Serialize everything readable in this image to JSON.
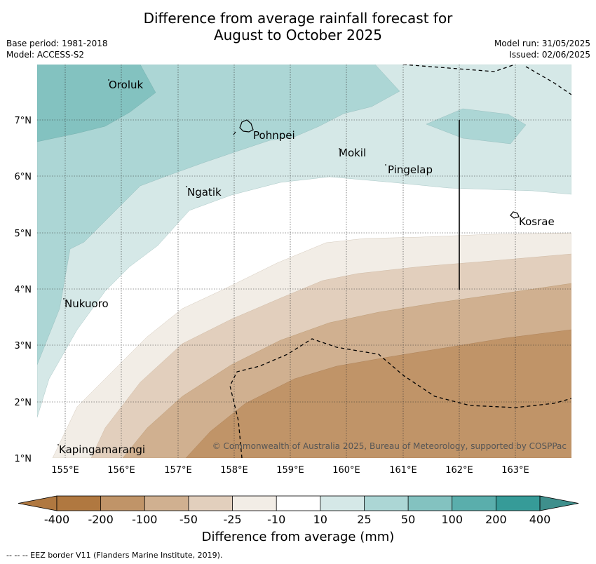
{
  "title_line1": "Difference from average rainfall forecast for",
  "title_line2": "August to October 2025",
  "base_period": "Base period: 1981-2018",
  "model": "Model: ACCESS-S2",
  "model_run": "Model run: 31/05/2025",
  "issued": "Issued: 02/06/2025",
  "copyright": "© Commonwealth of Australia 2025, Bureau of Meteorology, supported by COSPPac",
  "colorbar_title": "Difference from average (mm)",
  "footer_note": "--  --  -- EEZ border V11 (Flanders Marine Institute, 2019).",
  "lat_labels": [
    "7°N",
    "6°N",
    "5°N",
    "4°N",
    "3°N",
    "2°N",
    "1°N"
  ],
  "lon_labels": [
    "155°E",
    "156°E",
    "157°E",
    "158°E",
    "159°E",
    "160°E",
    "161°E",
    "162°E",
    "163°E"
  ],
  "places": [
    {
      "name": "Oroluk"
    },
    {
      "name": "Pohnpei"
    },
    {
      "name": "Mokil"
    },
    {
      "name": "Pingelap"
    },
    {
      "name": "Ngatik"
    },
    {
      "name": "Kosrae"
    },
    {
      "name": "Nukuoro"
    },
    {
      "name": "Kapingamarangi"
    }
  ],
  "colorbar": {
    "ticks": [
      "-400",
      "-200",
      "-100",
      "-50",
      "-25",
      "-10",
      "10",
      "25",
      "50",
      "100",
      "200",
      "400"
    ],
    "colors": [
      "#b07840",
      "#c09468",
      "#d0b090",
      "#e2cfbd",
      "#f2ede6",
      "#ffffff",
      "#d5e8e7",
      "#acd6d5",
      "#83c2c0",
      "#5aaeac",
      "#369b98",
      "#3e8f8c"
    ]
  }
}
